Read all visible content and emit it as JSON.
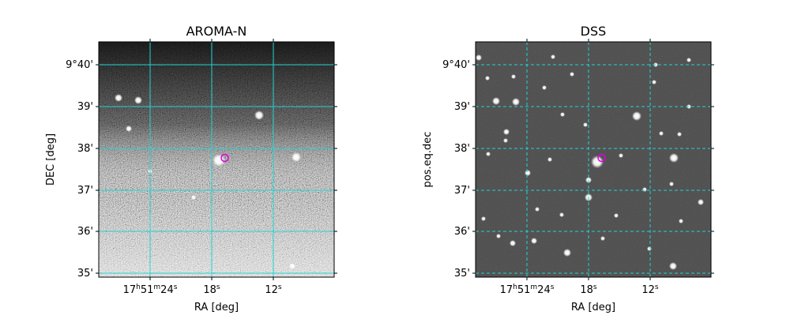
{
  "colors": {
    "grid": "#22d3d3",
    "marker": "#e000e0",
    "frame": "#000000"
  },
  "panels": [
    {
      "id": "aroma",
      "title": "AROMA-N",
      "xlabel": "RA [deg]",
      "ylabel": "DEC [deg]",
      "image_style": "grayscale noisy sky, darker at top, brighter at bottom",
      "x_ticks": [
        {
          "h": "17",
          "m": "51",
          "s": "24",
          "label_type": "hms"
        },
        {
          "s": "18",
          "label_type": "s"
        },
        {
          "s": "12",
          "label_type": "s"
        }
      ],
      "y_ticks": [
        "9°40'",
        "39'",
        "38'",
        "37'",
        "36'",
        "35'"
      ],
      "grid": true,
      "grid_style": "solid"
    },
    {
      "id": "dss",
      "title": "DSS",
      "xlabel": "RA [deg]",
      "ylabel": "pos.eq.dec",
      "image_style": "dark sky with white stars",
      "x_ticks": [
        {
          "h": "17",
          "m": "51",
          "s": "24",
          "label_type": "hms"
        },
        {
          "s": "18",
          "label_type": "s"
        },
        {
          "s": "12",
          "label_type": "s"
        }
      ],
      "y_ticks": [
        "9°40'",
        "39'",
        "38'",
        "37'",
        "36'",
        "35'"
      ],
      "grid": true,
      "grid_style": "dashed"
    }
  ]
}
